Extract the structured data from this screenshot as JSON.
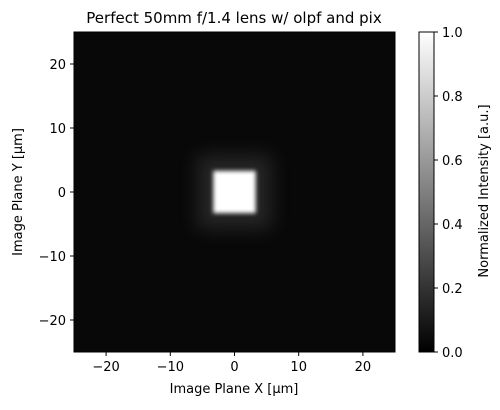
{
  "chart_data": {
    "type": "heatmap",
    "title": "Perfect 50mm f/1.4 lens w/ olpf and pix",
    "xlabel": "Image Plane X [μm]",
    "ylabel": "Image Plane Y [μm]",
    "colorbar_label": "Normalized Intensity [a.u.]",
    "xlim": [
      -25,
      25
    ],
    "ylim": [
      -25,
      25
    ],
    "xticks": [
      -20,
      -10,
      0,
      10,
      20
    ],
    "yticks": [
      -20,
      -10,
      0,
      10,
      20
    ],
    "xtick_labels": [
      "−20",
      "−10",
      "0",
      "10",
      "20"
    ],
    "ytick_labels": [
      "−20",
      "−10",
      "0",
      "10",
      "20"
    ],
    "colorbar_range": [
      0.0,
      1.0
    ],
    "colorbar_ticks": [
      0.0,
      0.2,
      0.4,
      0.6,
      0.8,
      1.0
    ],
    "colorbar_tick_labels": [
      "0.0",
      "0.2",
      "0.4",
      "0.6",
      "0.8",
      "1.0"
    ],
    "colormap": "gray",
    "feature": {
      "shape": "square",
      "center": [
        0,
        0
      ],
      "core_half_width_um": 3.3,
      "peak_intensity": 1.0,
      "edge_blur_um": 1.5
    },
    "background_intensity": 0.03,
    "grid": false
  }
}
